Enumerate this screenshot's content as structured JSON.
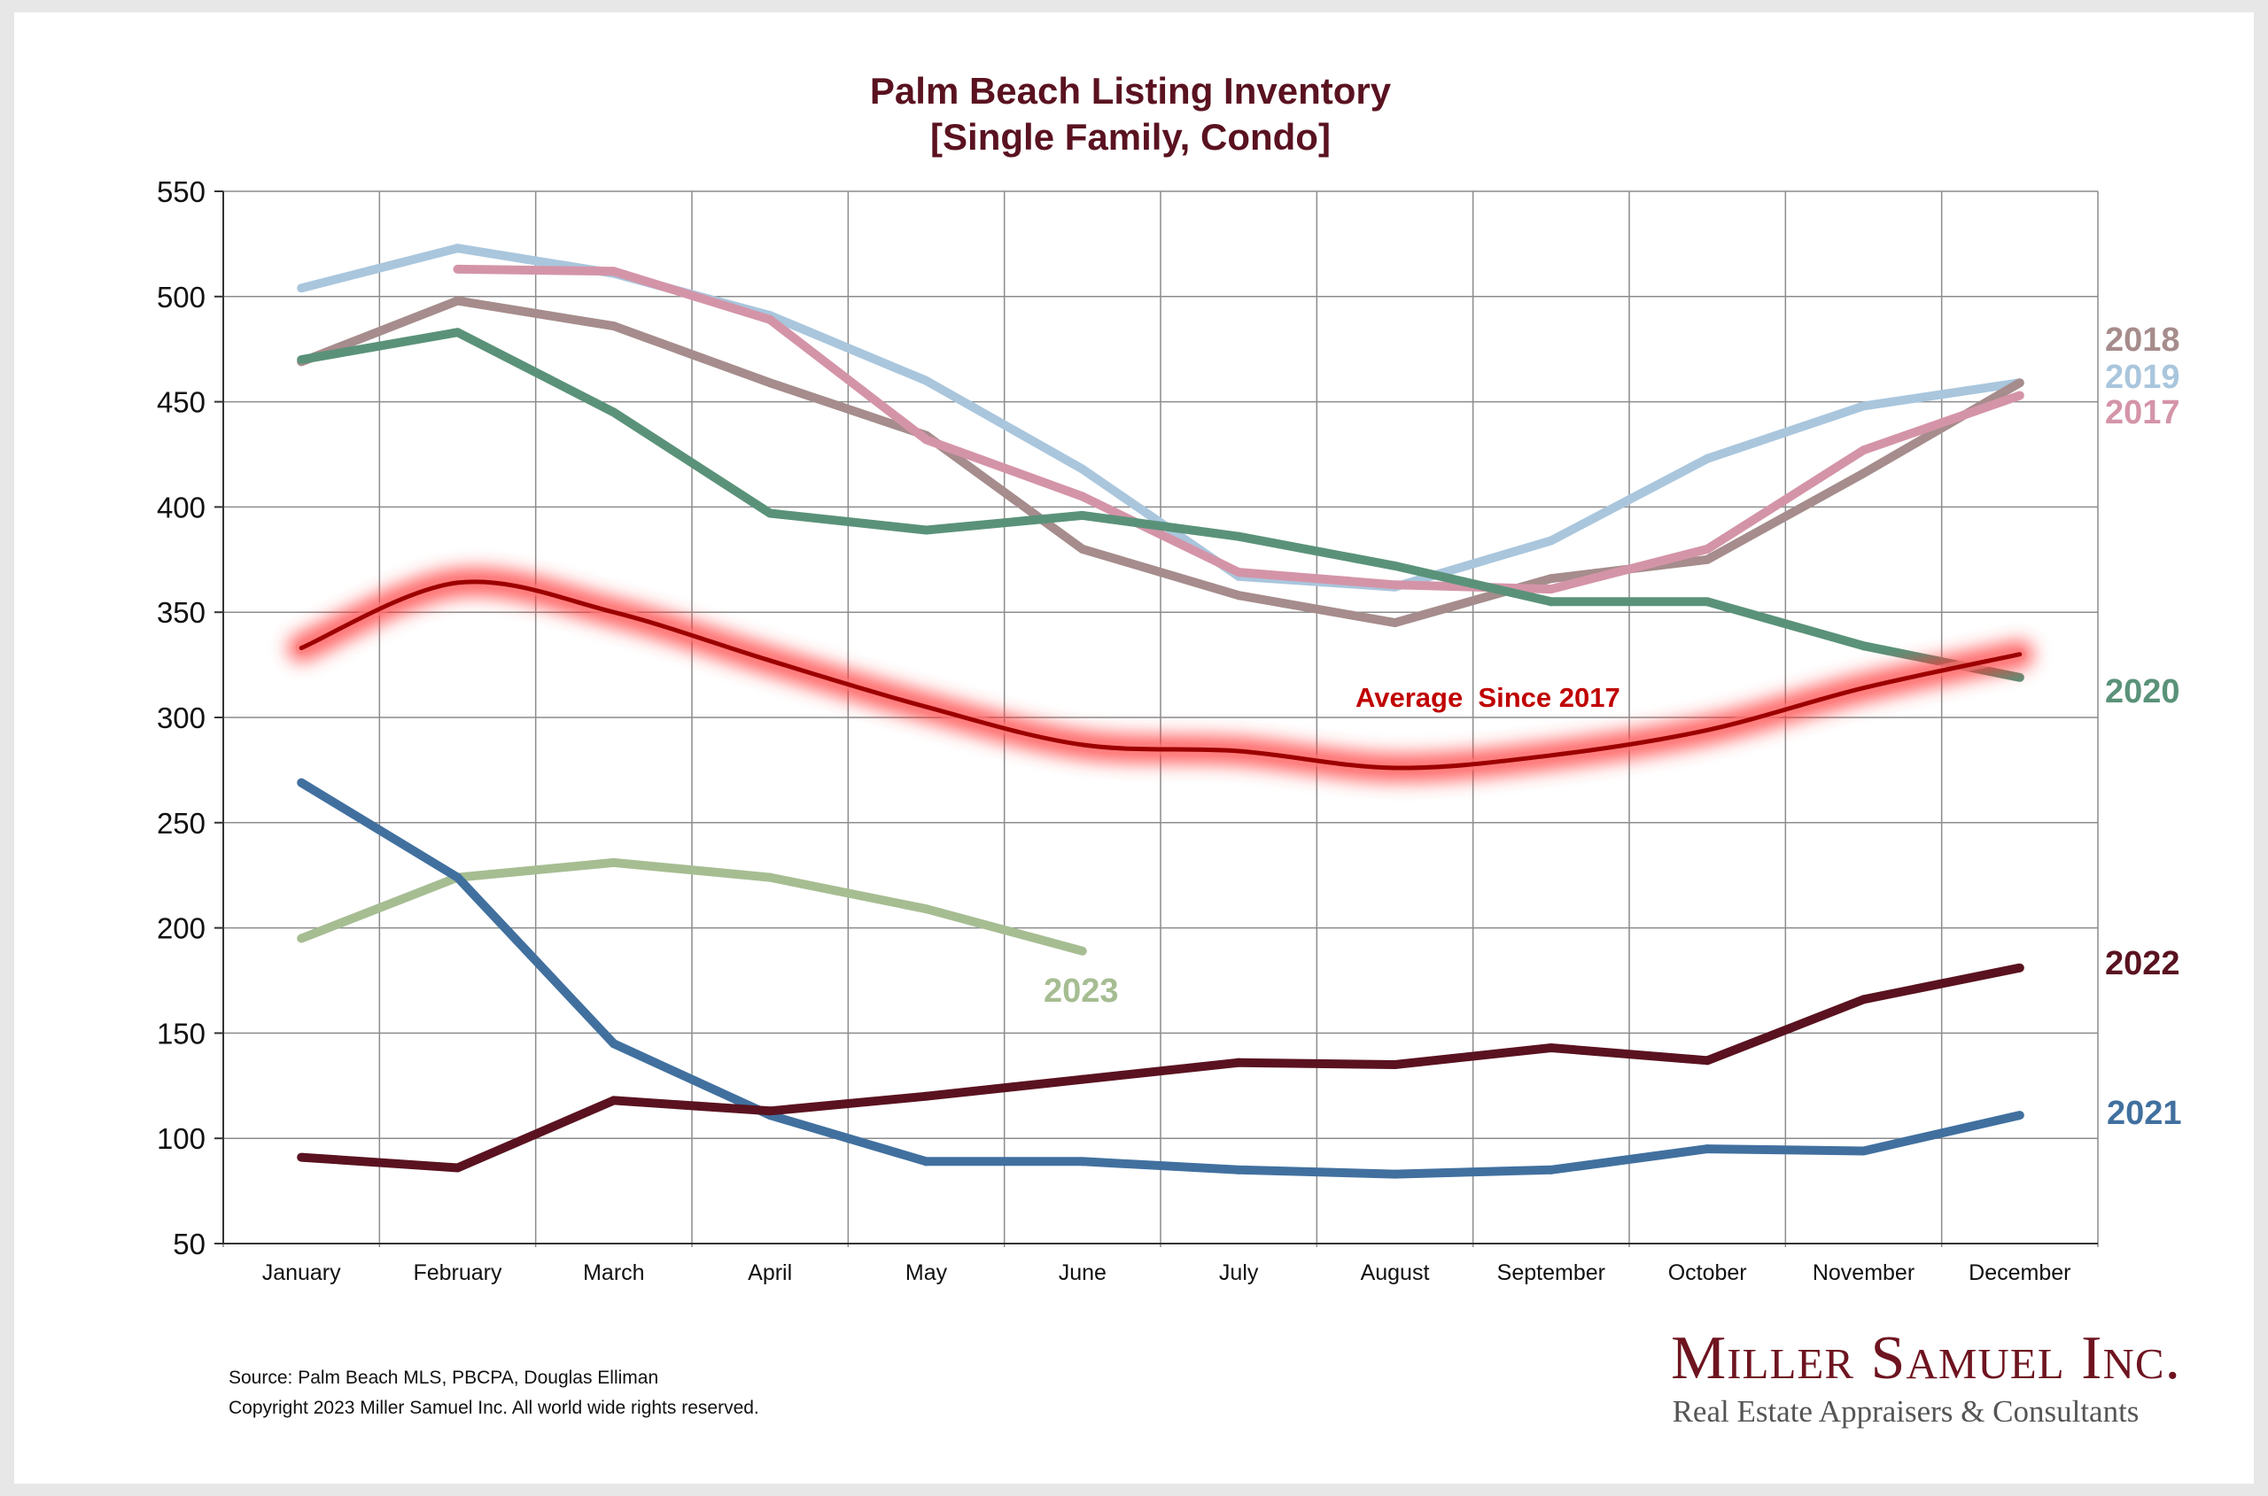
{
  "chart_data": {
    "type": "line",
    "title": "Palm Beach Listing Inventory",
    "subtitle": "[Single Family, Condo]",
    "categories": [
      "January",
      "February",
      "March",
      "April",
      "May",
      "June",
      "July",
      "August",
      "September",
      "October",
      "November",
      "December"
    ],
    "ylim": [
      50,
      550
    ],
    "yticks": [
      50,
      100,
      150,
      200,
      250,
      300,
      350,
      400,
      450,
      500,
      550
    ],
    "grid": true,
    "series": [
      {
        "name": "2017",
        "color": "#d494a8",
        "values": [
          null,
          513,
          512,
          489,
          432,
          405,
          369,
          363,
          361,
          380,
          427,
          453
        ]
      },
      {
        "name": "2018",
        "color": "#a68c8c",
        "values": [
          469,
          498,
          486,
          459,
          434,
          380,
          358,
          345,
          366,
          375,
          416,
          459
        ]
      },
      {
        "name": "2019",
        "color": "#a9c6dd",
        "values": [
          504,
          523,
          511,
          491,
          460,
          418,
          367,
          362,
          384,
          423,
          448,
          459
        ]
      },
      {
        "name": "2020",
        "color": "#5a9279",
        "values": [
          470,
          483,
          445,
          397,
          389,
          396,
          386,
          372,
          355,
          355,
          334,
          319
        ]
      },
      {
        "name": "2021",
        "color": "#41709f",
        "values": [
          269,
          224,
          145,
          111,
          89,
          89,
          85,
          83,
          85,
          95,
          94,
          111
        ]
      },
      {
        "name": "2022",
        "color": "#5a1220",
        "values": [
          91,
          86,
          118,
          113,
          120,
          128,
          136,
          135,
          143,
          137,
          166,
          181
        ]
      },
      {
        "name": "2023",
        "color": "#a6bd92",
        "values": [
          195,
          224,
          231,
          224,
          209,
          189,
          null,
          null,
          null,
          null,
          null,
          null
        ]
      },
      {
        "name": "Average  Since 2017",
        "color": "#b00000",
        "values": [
          333,
          364,
          350,
          327,
          305,
          287,
          284,
          276,
          282,
          294,
          314,
          330
        ]
      }
    ],
    "annotations": {
      "average_label": "Average  Since 2017",
      "label_2017": "2017",
      "label_2018": "2018",
      "label_2019": "2019",
      "label_2020": "2020",
      "label_2021": "2021",
      "label_2022": "2022",
      "label_2023": "2023"
    }
  },
  "footer": {
    "source": "Source: Palm Beach MLS, PBCPA, Douglas Elliman",
    "copyright": "Copyright 2023 Miller Samuel Inc.  All world wide rights reserved."
  },
  "logo": {
    "name": "Miller Samuel Inc.",
    "tagline": "Real Estate Appraisers & Consultants"
  }
}
